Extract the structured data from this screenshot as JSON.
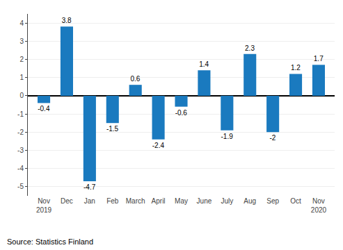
{
  "chart_data": {
    "type": "bar",
    "categories": [
      "Nov\n2019",
      "Dec",
      "Jan",
      "Feb",
      "March",
      "April",
      "May",
      "June",
      "July",
      "Aug",
      "Sep",
      "Oct",
      "Nov\n2020"
    ],
    "values": [
      -0.4,
      3.8,
      -4.7,
      -1.5,
      0.6,
      -2.4,
      -0.6,
      1.4,
      -1.9,
      2.3,
      -2.0,
      1.2,
      1.7
    ],
    "color": "#1a7abf",
    "ylim": [
      -5.5,
      4.5
    ],
    "yticks": [
      -5,
      -4,
      -3,
      -2,
      -1,
      0,
      1,
      2,
      3,
      4
    ],
    "grid": true,
    "data_labels": true,
    "annotations": [
      "Source: Statistics Finland"
    ]
  }
}
